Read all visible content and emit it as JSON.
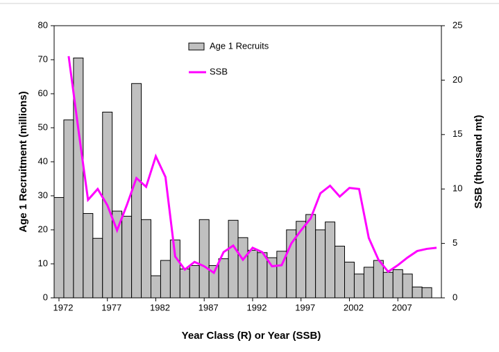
{
  "chart_data": {
    "type": "bar",
    "x_label": "Year Class (R) or Year (SSB)",
    "y_label": "Age 1 Recruitment (millions)",
    "y2_label": "SSB (thousand mt)",
    "x": [
      1972,
      1973,
      1974,
      1975,
      1976,
      1977,
      1978,
      1979,
      1980,
      1981,
      1982,
      1983,
      1984,
      1985,
      1986,
      1987,
      1988,
      1989,
      1990,
      1991,
      1992,
      1993,
      1994,
      1995,
      1996,
      1997,
      1998,
      1999,
      2000,
      2001,
      2002,
      2003,
      2004,
      2005,
      2006,
      2007,
      2008,
      2009,
      2010,
      2011
    ],
    "xlim": [
      1971.5,
      2011.5
    ],
    "xticks": [
      1972,
      1977,
      1982,
      1987,
      1992,
      1997,
      2002,
      2007
    ],
    "ylim": [
      0,
      80
    ],
    "yticks": [
      0,
      10,
      20,
      30,
      40,
      50,
      60,
      70,
      80
    ],
    "y2lim": [
      0,
      25
    ],
    "y2ticks": [
      0,
      5,
      10,
      15,
      20,
      25
    ],
    "series": [
      {
        "name": "Age 1 Recruits",
        "type": "bar",
        "color": "#c0c0c0",
        "values": [
          29.5,
          52.3,
          70.5,
          24.8,
          17.5,
          54.6,
          25.5,
          24,
          63,
          23,
          6.5,
          11,
          17,
          8.5,
          9.5,
          23,
          9.5,
          11.5,
          22.8,
          17.7,
          14,
          13.3,
          11.8,
          13.7,
          20,
          22.5,
          24.5,
          20,
          22.3,
          15.2,
          10.5,
          7,
          9,
          11,
          7.5,
          8.3,
          7,
          3.2,
          3,
          null
        ]
      },
      {
        "name": "SSB",
        "type": "line",
        "axis": "y2",
        "color": "#ff00ff",
        "values": [
          null,
          22.2,
          15.5,
          9,
          10,
          8.5,
          6.2,
          8.5,
          11,
          10.2,
          13,
          11.1,
          3.8,
          2.6,
          3.3,
          2.9,
          2.3,
          4.2,
          4.8,
          3.5,
          4.6,
          4.2,
          2.9,
          3,
          5,
          6.2,
          7.3,
          9.6,
          10.3,
          9.3,
          10.1,
          10,
          5.5,
          3.5,
          2.4,
          3,
          3.7,
          4.3,
          4.5,
          4.6
        ]
      }
    ]
  }
}
